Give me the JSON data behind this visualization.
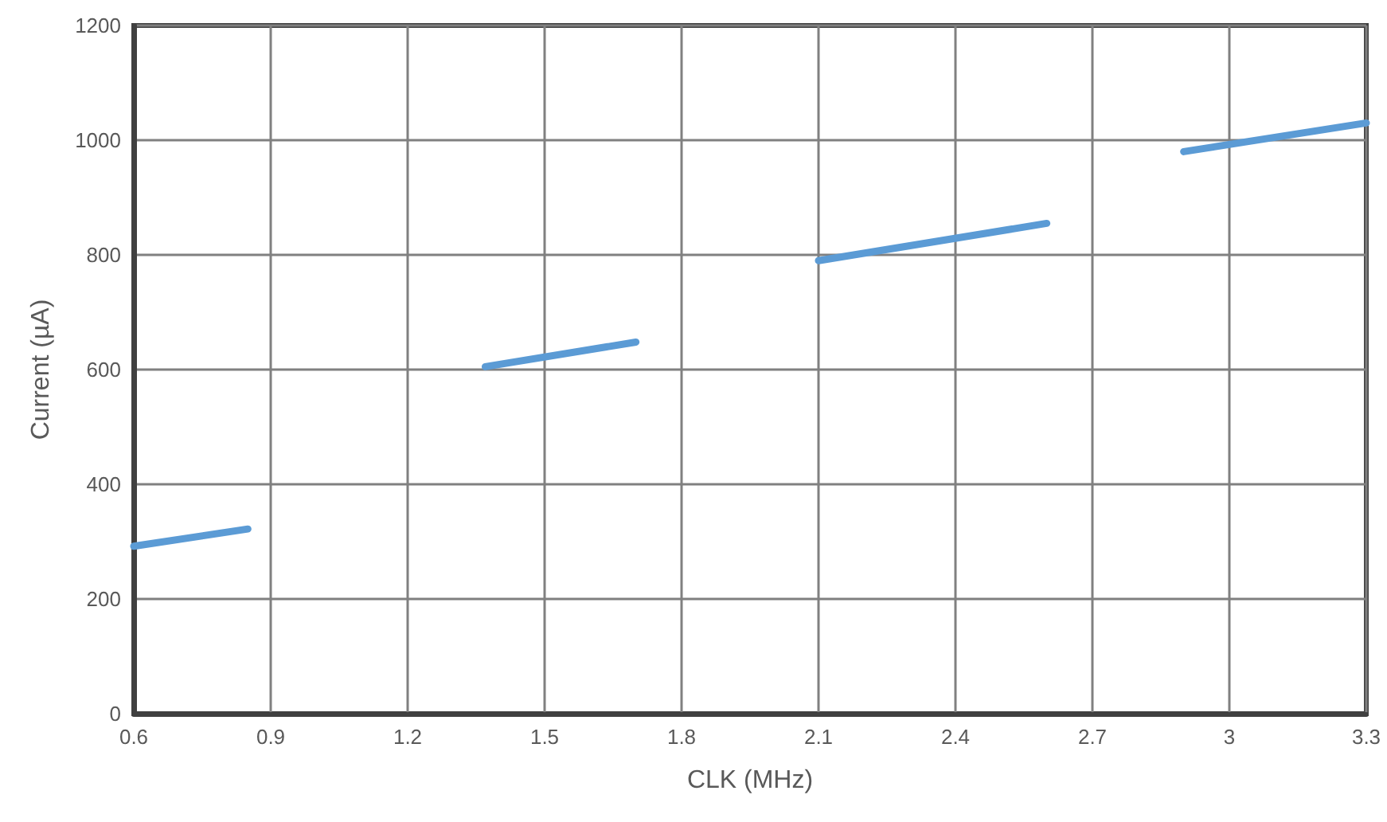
{
  "chart_data": {
    "type": "line",
    "xlabel": "CLK (MHz)",
    "ylabel": "Current (µA)",
    "series": [
      {
        "color": "#5b9bd5",
        "x": [
          0.6,
          0.85
        ],
        "values": [
          292,
          322
        ]
      },
      {
        "color": "#5b9bd5",
        "x": [
          1.37,
          1.7
        ],
        "values": [
          605,
          648
        ]
      },
      {
        "color": "#5b9bd5",
        "x": [
          2.1,
          2.6
        ],
        "values": [
          790,
          855
        ]
      },
      {
        "color": "#5b9bd5",
        "x": [
          2.9,
          3.3
        ],
        "values": [
          980,
          1030
        ]
      }
    ],
    "xlim": [
      0.6,
      3.3
    ],
    "xticks": [
      0.6,
      0.9,
      1.2,
      1.5,
      1.8,
      2.1,
      2.4,
      2.7,
      3,
      3.3
    ],
    "ylim": [
      0,
      1200
    ],
    "yticks": [
      0,
      200,
      400,
      600,
      800,
      1000,
      1200
    ],
    "grid": true,
    "marker": "none",
    "line_style": "solid"
  }
}
